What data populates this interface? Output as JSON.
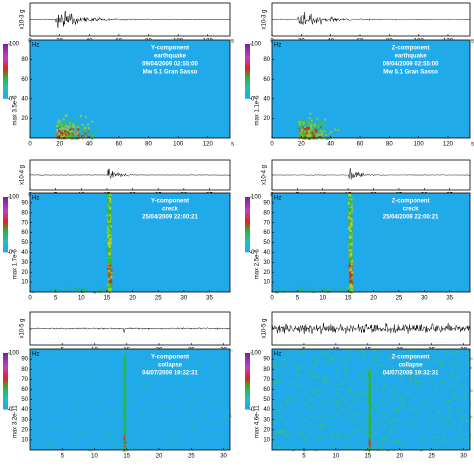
{
  "panels": [
    {
      "wave_label": "x10-3 g",
      "xticks": [
        0,
        20,
        40,
        60,
        80,
        100,
        120
      ],
      "xlim": [
        0,
        135
      ],
      "x_unit": "s",
      "spec": {
        "max_label": "max 3.5e-6",
        "y_unit": "Hz",
        "yticks": [
          20,
          40,
          60,
          80
        ],
        "ylim": [
          0,
          100
        ],
        "colorbar_ticks": [
          100,
          0
        ],
        "annotation": [
          "Y-component",
          "earthquake",
          "09/04/2009 02:55:00",
          "Mw 5.1 Gran Sasso"
        ]
      }
    },
    {
      "wave_label": "x10-3 g",
      "xticks": [
        0,
        20,
        40,
        60,
        80,
        100,
        120
      ],
      "xlim": [
        0,
        135
      ],
      "x_unit": "s",
      "spec": {
        "max_label": "max 1.1e-6",
        "y_unit": "Hz",
        "yticks": [
          20,
          40,
          60,
          80
        ],
        "ylim": [
          0,
          100
        ],
        "colorbar_ticks": [
          100,
          0
        ],
        "annotation": [
          "Z-component",
          "earthquake",
          "09/04/2009 02:55:00",
          "Mw 5.1 Gran Sasso"
        ]
      }
    },
    {
      "wave_label": "x10-4 g",
      "xticks": [
        0,
        5,
        10,
        15,
        20,
        25,
        30,
        35
      ],
      "xlim": [
        0,
        39
      ],
      "spec": {
        "max_label": "max 1.7e-6",
        "y_unit": "Hz",
        "yticks": [
          10,
          20,
          30,
          40,
          50,
          60,
          70,
          80,
          90
        ],
        "ylim": [
          0,
          100
        ],
        "colorbar_ticks": [
          100,
          0
        ],
        "annotation": [
          "Y-component",
          "creck",
          "25/04/2009 22:00:21"
        ]
      }
    },
    {
      "wave_label": "x10-4 g",
      "xticks": [
        0,
        5,
        10,
        15,
        20,
        25,
        30,
        35
      ],
      "xlim": [
        0,
        39
      ],
      "spec": {
        "max_label": "max 2.5e-6",
        "y_unit": "Hz",
        "yticks": [
          10,
          20,
          30,
          40,
          50,
          60,
          70,
          80,
          90
        ],
        "ylim": [
          0,
          100
        ],
        "colorbar_ticks": [
          100,
          0
        ],
        "annotation": [
          "Z-component",
          "creck",
          "25/04/2009 22:00:21"
        ]
      }
    },
    {
      "wave_label": "x10-5 g",
      "xticks": [
        5,
        10,
        15,
        20,
        25,
        30
      ],
      "xlim": [
        0,
        31
      ],
      "spec": {
        "max_label": "max 3.2e-11",
        "y_unit": "Hz",
        "yticks": [
          10,
          20,
          30,
          40,
          50,
          60,
          70,
          80,
          90
        ],
        "ylim": [
          0,
          100
        ],
        "colorbar_ticks": [
          100,
          0
        ],
        "annotation": [
          "Y-component",
          "collapse",
          "04/07/2009 19:32:31"
        ]
      }
    },
    {
      "wave_label": "x10-5 g",
      "xticks": [
        5,
        10,
        15,
        20,
        25,
        30
      ],
      "xlim": [
        0,
        31
      ],
      "spec": {
        "max_label": "max 4.6e-11",
        "y_unit": "Hz",
        "yticks": [
          10,
          20,
          30,
          40,
          50,
          60,
          70,
          80,
          90
        ],
        "ylim": [
          0,
          100
        ],
        "colorbar_ticks": [
          100,
          0
        ],
        "annotation": [
          "Z-component",
          "collapse",
          "04/07/2009 19:32:31"
        ]
      }
    }
  ]
}
